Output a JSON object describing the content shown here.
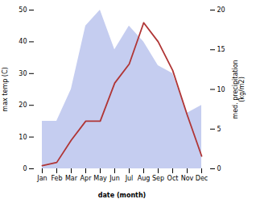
{
  "chart_data": {
    "type": "line",
    "categories": [
      "Jan",
      "Feb",
      "Mar",
      "Apr",
      "May",
      "Jun",
      "Jul",
      "Aug",
      "Sep",
      "Oct",
      "Nov",
      "Dec"
    ],
    "series": [
      {
        "type": "area",
        "axis": "y2",
        "color": "#c5cdf0",
        "values": [
          6,
          6,
          10,
          18,
          20,
          15,
          18,
          16,
          13,
          12,
          7,
          8
        ]
      },
      {
        "type": "line",
        "color": "#b03535",
        "values": [
          1,
          2,
          9,
          15,
          15,
          27,
          33,
          46,
          40,
          31,
          17,
          4
        ]
      }
    ],
    "xlabel": "date (month)",
    "ylabel": "max temp (C)",
    "y2label": "med. precipitation\n(kg/m2)",
    "ylim": [
      0,
      50
    ],
    "yticks": [
      0,
      10,
      20,
      30,
      40,
      50
    ],
    "y2lim": [
      0,
      20
    ],
    "y2ticks": [
      0,
      5,
      10,
      15,
      20
    ],
    "grid": false
  }
}
